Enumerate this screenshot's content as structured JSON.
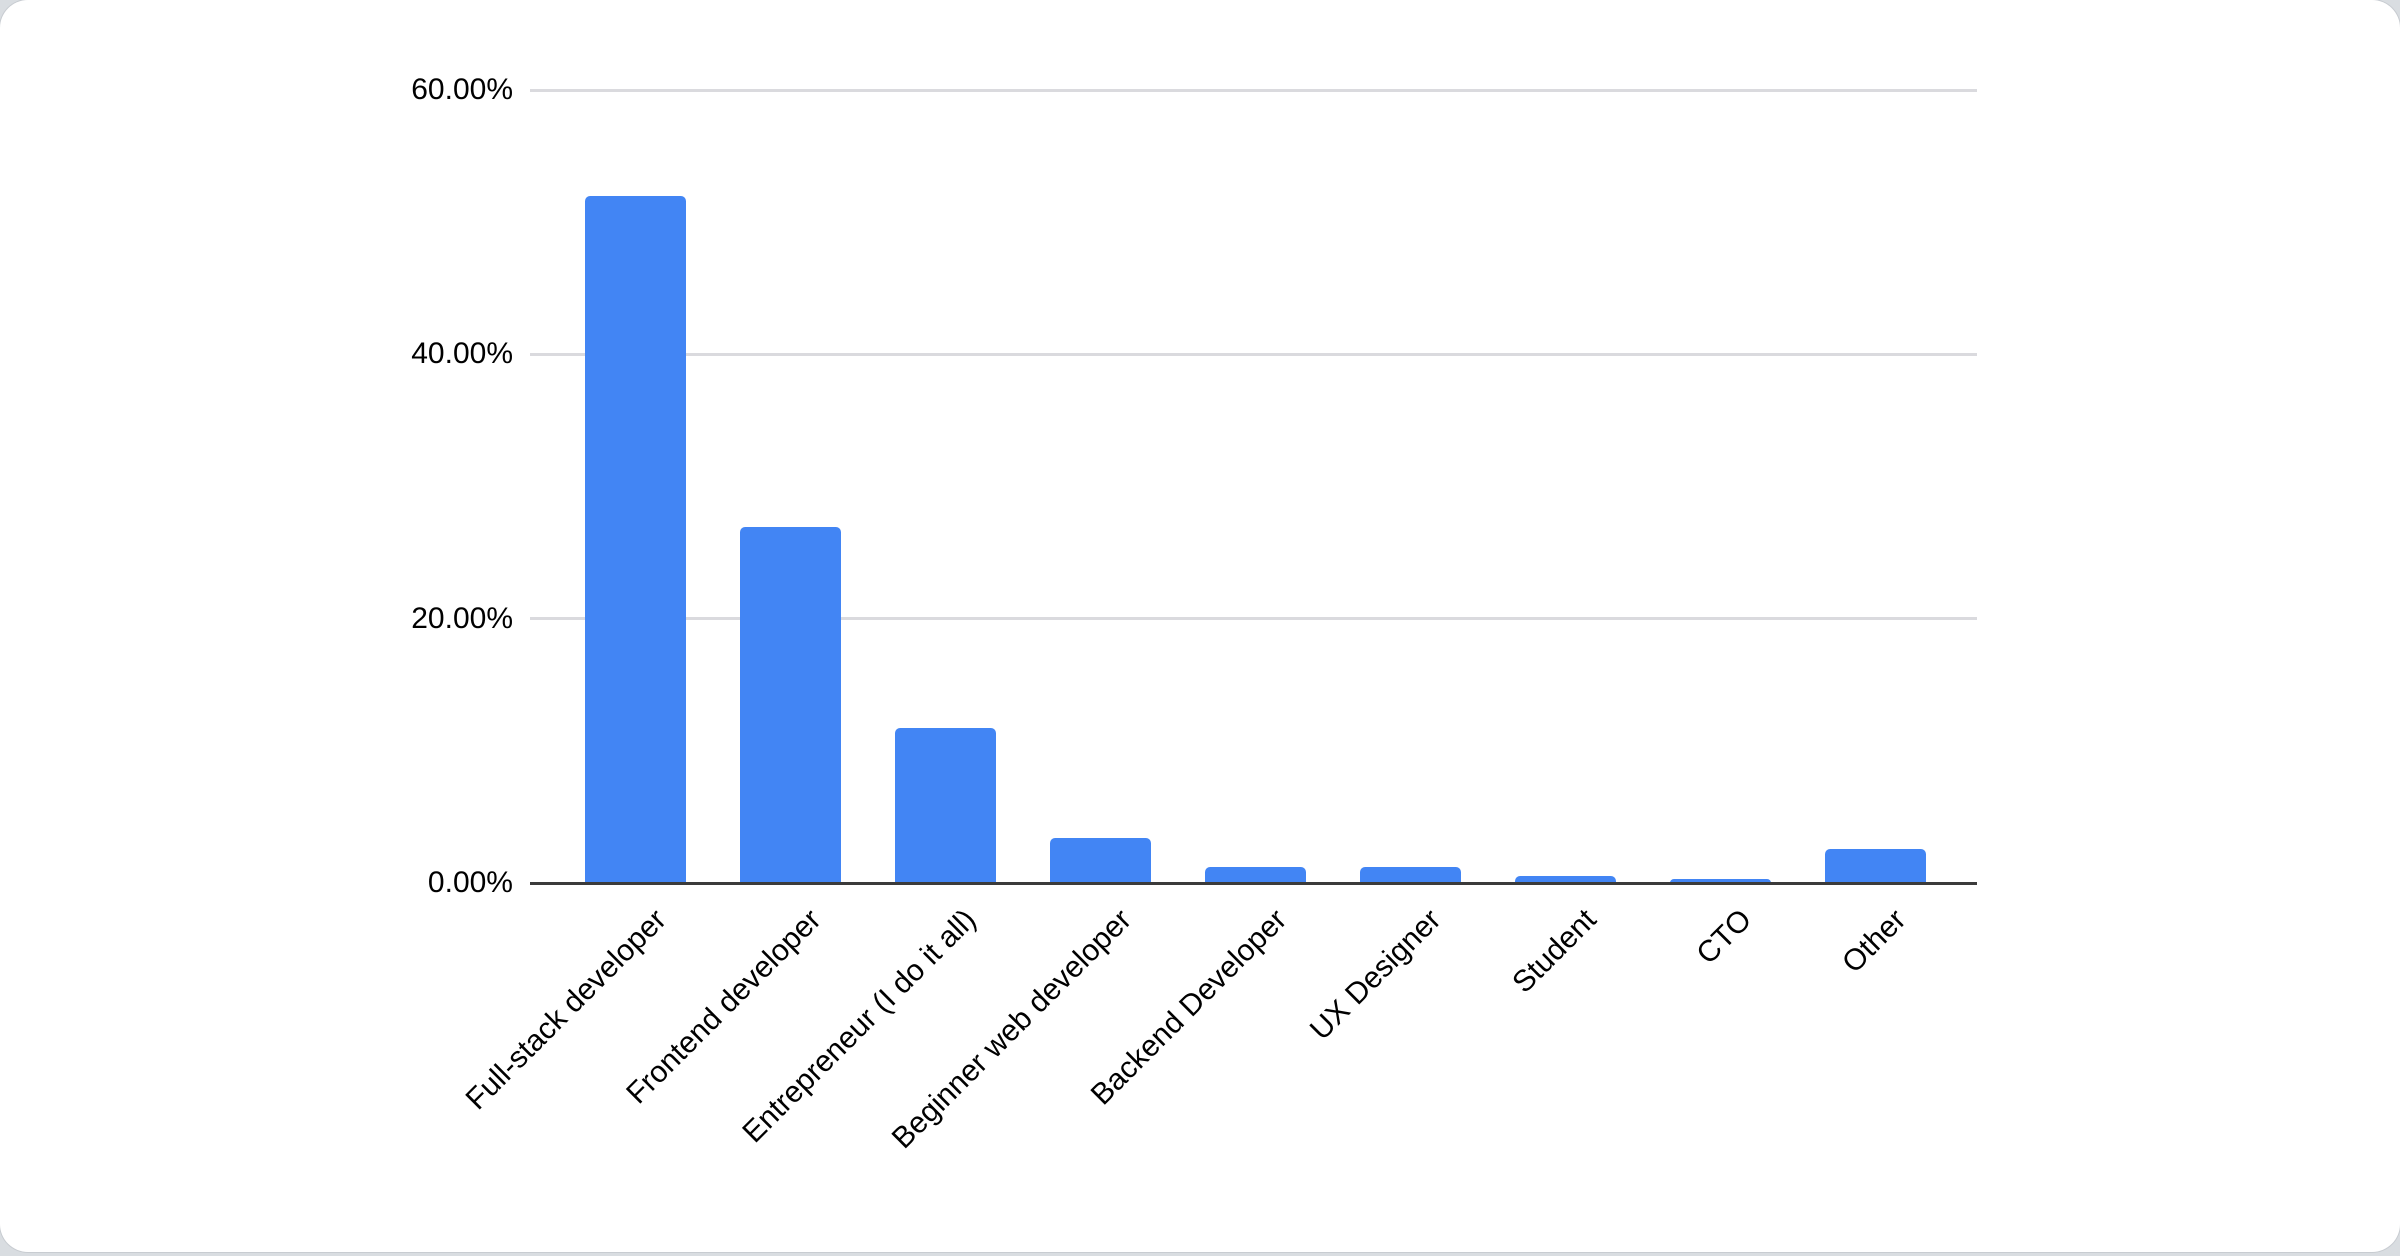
{
  "chart_data": {
    "type": "bar",
    "title": "",
    "xlabel": "",
    "ylabel": "",
    "categories": [
      "Full-stack developer",
      "Frontend developer",
      "Entrepreneur (I do it all)",
      "Beginner web developer",
      "Backend Developer",
      "UX Designer",
      "Student",
      "CTO",
      "Other"
    ],
    "values": [
      52.0,
      26.9,
      11.7,
      3.4,
      1.2,
      1.2,
      0.5,
      0.3,
      2.6
    ],
    "value_format": "percent",
    "ylim": [
      0,
      60
    ],
    "yticks": {
      "values": [
        0,
        20,
        40,
        60
      ],
      "labels": [
        "0.00%",
        "20.00%",
        "40.00%",
        "60.00%"
      ]
    },
    "grid": "horizontal",
    "legend": "none",
    "colors": {
      "bar": "#4285f4",
      "gridline": "#dadade",
      "axis_line": "#3b3b3b",
      "label_text": "#000000",
      "card_background": "#ffffff",
      "page_background": "#d9dde1"
    }
  }
}
